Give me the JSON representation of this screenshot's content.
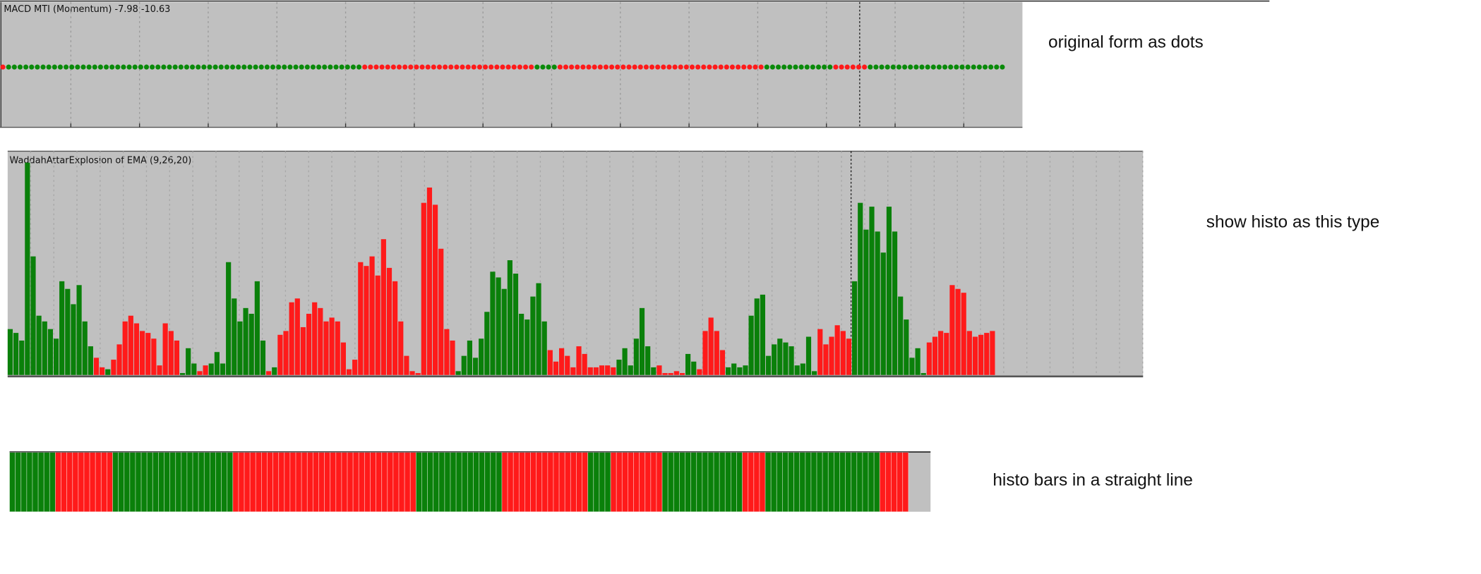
{
  "chart_data": [
    {
      "type": "dots",
      "title": "MACD MTI (Momentum) -7.98 -10.63",
      "annotation": "original form as dots",
      "palette": {
        "G": "#0a8a0a",
        "R": "#ff1a1a"
      },
      "runs": [
        {
          "color": "R",
          "count": 1
        },
        {
          "color": "G",
          "count": 62
        },
        {
          "color": "R",
          "count": 30
        },
        {
          "color": "G",
          "count": 4
        },
        {
          "color": "R",
          "count": 36
        },
        {
          "color": "G",
          "count": 12
        },
        {
          "color": "R",
          "count": 6
        },
        {
          "color": "G",
          "count": 24
        }
      ]
    },
    {
      "type": "histogram",
      "title": "WaddahAttarExplosion of EMA (9,26,20)",
      "annotation": "show histo as this type",
      "palette": {
        "G": "#0a800a",
        "R": "#ff1a1a"
      },
      "ylim": [
        0,
        230
      ],
      "values": [
        48,
        44,
        36,
        222,
        124,
        62,
        56,
        48,
        38,
        98,
        90,
        74,
        94,
        56,
        30,
        18,
        8,
        6,
        16,
        32,
        56,
        62,
        54,
        46,
        44,
        38,
        10,
        54,
        46,
        36,
        2,
        28,
        12,
        4,
        10,
        12,
        24,
        12,
        118,
        80,
        56,
        70,
        64,
        98,
        36,
        4,
        8,
        42,
        46,
        76,
        80,
        50,
        64,
        76,
        70,
        56,
        60,
        56,
        34,
        6,
        16,
        118,
        114,
        124,
        104,
        142,
        112,
        98,
        56,
        20,
        4,
        2,
        180,
        196,
        178,
        132,
        48,
        36,
        4,
        20,
        36,
        18,
        38,
        66,
        108,
        102,
        90,
        120,
        106,
        64,
        58,
        82,
        96,
        56,
        26,
        14,
        28,
        20,
        8,
        30,
        22,
        8,
        8,
        10,
        10,
        8,
        16,
        28,
        10,
        38,
        70,
        30,
        8,
        10,
        2,
        2,
        4,
        2,
        22,
        14,
        6,
        46,
        60,
        46,
        26,
        8,
        12,
        8,
        10,
        62,
        80,
        84,
        20,
        32,
        38,
        34,
        30,
        10,
        12,
        40,
        4,
        48,
        32,
        40,
        52,
        46,
        38,
        98,
        180,
        152,
        176,
        150,
        128,
        176,
        150,
        82,
        58,
        18,
        28,
        2,
        34,
        40,
        46,
        44,
        94,
        90,
        86,
        46,
        40,
        42,
        44,
        46
      ],
      "bar_colors": [
        "G",
        "G",
        "G",
        "G",
        "G",
        "G",
        "G",
        "G",
        "G",
        "G",
        "G",
        "G",
        "G",
        "G",
        "G",
        "R",
        "R",
        "G",
        "R",
        "R",
        "R",
        "R",
        "R",
        "R",
        "R",
        "R",
        "R",
        "R",
        "R",
        "R",
        "G",
        "G",
        "G",
        "R",
        "R",
        "G",
        "G",
        "G",
        "G",
        "G",
        "G",
        "G",
        "G",
        "G",
        "G",
        "R",
        "G",
        "R",
        "R",
        "R",
        "R",
        "R",
        "R",
        "R",
        "R",
        "R",
        "R",
        "R",
        "R",
        "R",
        "R",
        "R",
        "R",
        "R",
        "R",
        "R",
        "R",
        "R",
        "R",
        "R",
        "R",
        "R",
        "R",
        "R",
        "R",
        "R",
        "R",
        "R",
        "G",
        "G",
        "G",
        "G",
        "G",
        "G",
        "G",
        "G",
        "G",
        "G",
        "G",
        "G",
        "G",
        "G",
        "G",
        "G",
        "R",
        "R",
        "R",
        "R",
        "R",
        "R",
        "R",
        "R",
        "R",
        "R",
        "R",
        "R",
        "G",
        "G",
        "G",
        "G",
        "G",
        "G",
        "G",
        "R",
        "R",
        "R",
        "R",
        "R",
        "G",
        "G",
        "R",
        "R",
        "R",
        "R",
        "R",
        "G",
        "G",
        "G",
        "G",
        "G",
        "G",
        "G",
        "G",
        "G",
        "G",
        "G",
        "G",
        "G",
        "G",
        "G",
        "G",
        "R",
        "R",
        "R",
        "R",
        "R",
        "R",
        "G",
        "G",
        "G",
        "G",
        "G",
        "G",
        "G",
        "G",
        "G",
        "G",
        "G",
        "G",
        "G",
        "R",
        "R",
        "R",
        "R",
        "R",
        "R",
        "R",
        "R",
        "R",
        "R",
        "R",
        "R"
      ]
    },
    {
      "type": "strip",
      "annotation": "histo bars in a straight line",
      "palette": {
        "G": "#0a800a",
        "R": "#ff1a1a"
      },
      "runs": [
        {
          "color": "G",
          "count": 8
        },
        {
          "color": "R",
          "count": 10
        },
        {
          "color": "G",
          "count": 21
        },
        {
          "color": "R",
          "count": 32
        },
        {
          "color": "G",
          "count": 15
        },
        {
          "color": "R",
          "count": 15
        },
        {
          "color": "G",
          "count": 4
        },
        {
          "color": "R",
          "count": 9
        },
        {
          "color": "G",
          "count": 14
        },
        {
          "color": "R",
          "count": 4
        },
        {
          "color": "G",
          "count": 20
        },
        {
          "color": "R",
          "count": 5
        }
      ]
    }
  ]
}
